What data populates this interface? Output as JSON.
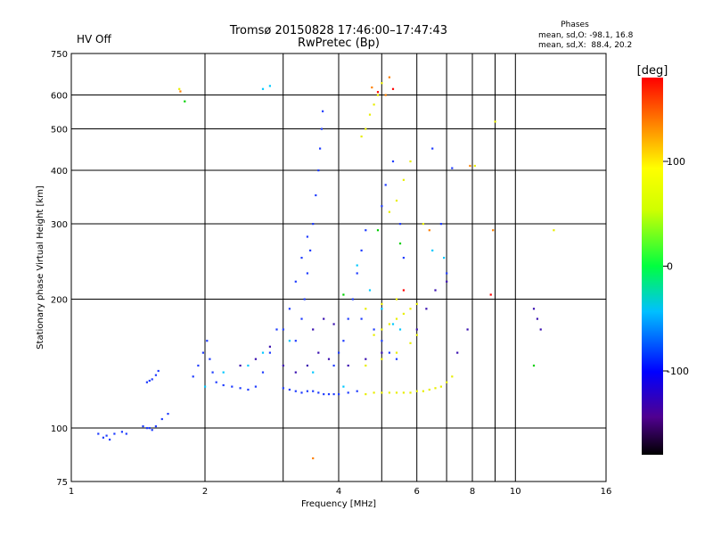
{
  "header": {
    "hv_status": "HV Off",
    "hv_color": "#d00000",
    "title_line1": "Tromsø 20150828 17:46:00–17:47:43",
    "title_line2": "RwPretec (Bp)",
    "phases_title": "Phases",
    "phases_o": "mean, sd,O: -98.1, 16.8",
    "phases_x": "mean, sd,X:  88.4, 20.2"
  },
  "chart_data": {
    "type": "scatter",
    "title": "Tromsø 20150828 17:46:00–17:47:43",
    "subtitle": "RwPretec (Bp)",
    "xlabel": "Frequency [MHz]",
    "ylabel": "Stationary phase Virtual Height [km]",
    "x_scale": "log",
    "y_scale": "log",
    "xlim": [
      1,
      16
    ],
    "ylim": [
      75,
      750
    ],
    "x_ticks": [
      1,
      2,
      4,
      6,
      8,
      10,
      16
    ],
    "x_minor_ticks": [
      3,
      5,
      7,
      9
    ],
    "y_ticks": [
      75,
      100,
      200,
      300,
      400,
      500,
      600,
      750
    ],
    "grid": true,
    "colorbar": {
      "label": "[deg]",
      "min": -180,
      "max": 180,
      "ticks": [
        100,
        0,
        -100
      ]
    },
    "series": [
      {
        "color": "#1f3cff",
        "points": [
          [
            1.15,
            97
          ],
          [
            1.18,
            95
          ],
          [
            1.2,
            96
          ],
          [
            1.22,
            94
          ],
          [
            1.25,
            97
          ],
          [
            1.3,
            98
          ],
          [
            1.33,
            97
          ],
          [
            1.45,
            101
          ],
          [
            1.48,
            100
          ],
          [
            1.5,
            100
          ],
          [
            1.52,
            99
          ],
          [
            1.55,
            101
          ],
          [
            1.6,
            105
          ],
          [
            1.65,
            108
          ],
          [
            1.48,
            128
          ],
          [
            1.5,
            129
          ],
          [
            1.52,
            130
          ],
          [
            1.55,
            133
          ],
          [
            1.57,
            136
          ],
          [
            1.88,
            132
          ],
          [
            1.93,
            140
          ],
          [
            1.98,
            150
          ],
          [
            2.02,
            160
          ],
          [
            2.05,
            145
          ],
          [
            2.08,
            135
          ],
          [
            2.12,
            128
          ],
          [
            2.2,
            126
          ],
          [
            2.3,
            125
          ],
          [
            2.4,
            124
          ],
          [
            2.5,
            123
          ],
          [
            2.6,
            125
          ],
          [
            2.7,
            135
          ],
          [
            2.8,
            150
          ],
          [
            2.9,
            170
          ],
          [
            3.0,
            124
          ],
          [
            3.1,
            123
          ],
          [
            3.2,
            122
          ],
          [
            3.3,
            121
          ],
          [
            3.4,
            122
          ],
          [
            3.5,
            122
          ],
          [
            3.6,
            121
          ],
          [
            3.7,
            120
          ],
          [
            3.8,
            120
          ],
          [
            3.9,
            120
          ],
          [
            4.0,
            120
          ],
          [
            4.2,
            121
          ],
          [
            4.4,
            122
          ],
          [
            3.2,
            160
          ],
          [
            3.3,
            180
          ],
          [
            3.35,
            200
          ],
          [
            3.4,
            230
          ],
          [
            3.45,
            260
          ],
          [
            3.5,
            300
          ],
          [
            3.55,
            350
          ],
          [
            3.6,
            400
          ],
          [
            3.63,
            450
          ],
          [
            3.66,
            500
          ],
          [
            3.68,
            550
          ],
          [
            3.0,
            170
          ],
          [
            3.1,
            190
          ],
          [
            3.2,
            220
          ],
          [
            3.3,
            250
          ],
          [
            3.4,
            280
          ],
          [
            3.9,
            140
          ],
          [
            4.0,
            150
          ],
          [
            4.1,
            160
          ],
          [
            4.2,
            180
          ],
          [
            4.3,
            200
          ],
          [
            4.4,
            230
          ],
          [
            4.5,
            260
          ],
          [
            4.6,
            290
          ],
          [
            4.5,
            180
          ],
          [
            4.8,
            170
          ],
          [
            5.0,
            160
          ],
          [
            5.2,
            150
          ],
          [
            5.4,
            145
          ],
          [
            5.0,
            330
          ],
          [
            5.1,
            370
          ],
          [
            5.3,
            420
          ],
          [
            5.5,
            300
          ],
          [
            5.6,
            250
          ],
          [
            6.5,
            450
          ],
          [
            7.2,
            405
          ],
          [
            7.0,
            230
          ],
          [
            6.8,
            300
          ]
        ]
      },
      {
        "color": "#3a10b0",
        "points": [
          [
            2.4,
            140
          ],
          [
            2.6,
            145
          ],
          [
            2.8,
            155
          ],
          [
            3.0,
            140
          ],
          [
            3.2,
            135
          ],
          [
            3.4,
            140
          ],
          [
            3.6,
            150
          ],
          [
            3.8,
            145
          ],
          [
            3.5,
            170
          ],
          [
            3.7,
            180
          ],
          [
            3.9,
            175
          ],
          [
            4.2,
            140
          ],
          [
            4.6,
            145
          ],
          [
            5.0,
            150
          ],
          [
            6.0,
            170
          ],
          [
            6.3,
            190
          ],
          [
            6.6,
            210
          ],
          [
            7.0,
            220
          ],
          [
            7.4,
            150
          ],
          [
            7.8,
            170
          ],
          [
            11.0,
            190
          ],
          [
            11.2,
            180
          ],
          [
            11.4,
            170
          ]
        ]
      },
      {
        "color": "#00c8ff",
        "points": [
          [
            2.0,
            125
          ],
          [
            2.2,
            135
          ],
          [
            2.5,
            140
          ],
          [
            2.7,
            150
          ],
          [
            3.1,
            160
          ],
          [
            3.5,
            135
          ],
          [
            4.1,
            125
          ],
          [
            4.4,
            240
          ],
          [
            4.7,
            210
          ],
          [
            5.0,
            190
          ],
          [
            5.3,
            175
          ],
          [
            5.5,
            170
          ],
          [
            6.5,
            260
          ],
          [
            6.9,
            250
          ],
          [
            2.7,
            620
          ],
          [
            2.8,
            630
          ]
        ]
      },
      {
        "color": "#e8ee00",
        "points": [
          [
            4.6,
            120
          ],
          [
            4.8,
            121
          ],
          [
            5.0,
            121
          ],
          [
            5.2,
            121
          ],
          [
            5.4,
            121
          ],
          [
            5.6,
            121
          ],
          [
            5.8,
            121
          ],
          [
            6.0,
            122
          ],
          [
            6.2,
            122
          ],
          [
            6.4,
            123
          ],
          [
            6.6,
            124
          ],
          [
            6.8,
            125
          ],
          [
            7.0,
            128
          ],
          [
            7.2,
            132
          ],
          [
            4.6,
            140
          ],
          [
            5.0,
            145
          ],
          [
            5.4,
            150
          ],
          [
            5.8,
            158
          ],
          [
            6.0,
            165
          ],
          [
            4.8,
            165
          ],
          [
            5.0,
            170
          ],
          [
            5.2,
            175
          ],
          [
            5.4,
            180
          ],
          [
            5.6,
            185
          ],
          [
            5.8,
            190
          ],
          [
            6.0,
            195
          ],
          [
            4.6,
            190
          ],
          [
            5.0,
            195
          ],
          [
            5.4,
            200
          ],
          [
            5.2,
            320
          ],
          [
            5.4,
            340
          ],
          [
            5.6,
            380
          ],
          [
            5.8,
            420
          ],
          [
            4.6,
            500
          ],
          [
            4.7,
            540
          ],
          [
            4.8,
            570
          ],
          [
            4.9,
            600
          ],
          [
            5.0,
            640
          ],
          [
            4.5,
            480
          ],
          [
            9.0,
            520
          ],
          [
            8.1,
            410
          ],
          [
            12.2,
            290
          ],
          [
            1.75,
            620
          ],
          [
            6.2,
            300
          ]
        ]
      },
      {
        "color": "#ff8000",
        "points": [
          [
            1.76,
            612
          ],
          [
            4.75,
            625
          ],
          [
            5.1,
            600
          ],
          [
            5.2,
            660
          ],
          [
            3.5,
            85
          ],
          [
            8.9,
            290
          ],
          [
            7.9,
            410
          ],
          [
            6.4,
            290
          ]
        ]
      },
      {
        "color": "#ff0000",
        "points": [
          [
            4.9,
            610
          ],
          [
            5.3,
            620
          ],
          [
            5.6,
            210
          ],
          [
            8.8,
            205
          ]
        ]
      },
      {
        "color": "#00d000",
        "points": [
          [
            1.8,
            580
          ],
          [
            4.1,
            205
          ],
          [
            4.9,
            290
          ],
          [
            5.5,
            270
          ],
          [
            11.0,
            140
          ]
        ]
      }
    ]
  }
}
